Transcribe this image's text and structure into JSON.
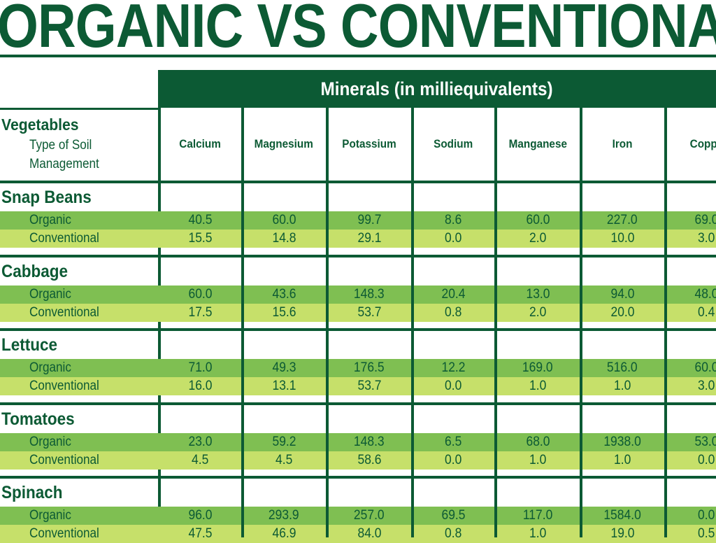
{
  "title": "ORGANIC VS CONVENTIONA",
  "chart_data": {
    "type": "table",
    "group_header": "Minerals (in milliequivalents)",
    "row_header": "Vegetables",
    "row_subheader_line1": "Type of Soil",
    "row_subheader_line2": "Management",
    "columns": [
      "Calcium",
      "Magnesium",
      "Potassium",
      "Sodium",
      "Manganese",
      "Iron",
      "Coppe"
    ],
    "vegetables": [
      {
        "name": "Snap Beans",
        "rows": [
          {
            "label": "Organic",
            "values": [
              "40.5",
              "60.0",
              "99.7",
              "8.6",
              "60.0",
              "227.0",
              "69.0"
            ]
          },
          {
            "label": "Conventional",
            "values": [
              "15.5",
              "14.8",
              "29.1",
              "0.0",
              "2.0",
              "10.0",
              "3.0"
            ]
          }
        ]
      },
      {
        "name": "Cabbage",
        "rows": [
          {
            "label": "Organic",
            "values": [
              "60.0",
              "43.6",
              "148.3",
              "20.4",
              "13.0",
              "94.0",
              "48.0"
            ]
          },
          {
            "label": "Conventional",
            "values": [
              "17.5",
              "15.6",
              "53.7",
              "0.8",
              "2.0",
              "20.0",
              "0.4"
            ]
          }
        ]
      },
      {
        "name": "Lettuce",
        "rows": [
          {
            "label": "Organic",
            "values": [
              "71.0",
              "49.3",
              "176.5",
              "12.2",
              "169.0",
              "516.0",
              "60.0"
            ]
          },
          {
            "label": "Conventional",
            "values": [
              "16.0",
              "13.1",
              "53.7",
              "0.0",
              "1.0",
              "1.0",
              "3.0"
            ]
          }
        ]
      },
      {
        "name": "Tomatoes",
        "rows": [
          {
            "label": "Organic",
            "values": [
              "23.0",
              "59.2",
              "148.3",
              "6.5",
              "68.0",
              "1938.0",
              "53.0"
            ]
          },
          {
            "label": "Conventional",
            "values": [
              "4.5",
              "4.5",
              "58.6",
              "0.0",
              "1.0",
              "1.0",
              "0.0"
            ]
          }
        ]
      },
      {
        "name": "Spinach",
        "rows": [
          {
            "label": "Organic",
            "values": [
              "96.0",
              "293.9",
              "257.0",
              "69.5",
              "117.0",
              "1584.0",
              "0.0"
            ]
          },
          {
            "label": "Conventional",
            "values": [
              "47.5",
              "46.9",
              "84.0",
              "0.8",
              "1.0",
              "19.0",
              "0.5"
            ]
          }
        ]
      }
    ]
  },
  "colors": {
    "dark_green": "#0c5a34",
    "organic_band": "#7fbf52",
    "conventional_band": "#c6e06a"
  }
}
